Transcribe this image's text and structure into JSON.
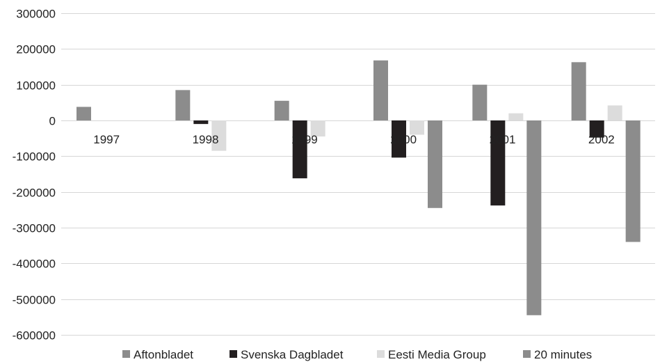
{
  "chart_data": {
    "type": "bar",
    "title": "",
    "xlabel": "",
    "ylabel": "",
    "categories": [
      "1997",
      "1998",
      "1999",
      "2000",
      "2001",
      "2002"
    ],
    "ylim": [
      -600000,
      300000
    ],
    "yticks": [
      300000,
      200000,
      100000,
      0,
      -100000,
      -200000,
      -300000,
      -400000,
      -500000,
      -600000
    ],
    "grid": true,
    "legend_position": "bottom",
    "series": [
      {
        "name": "Aftonbladet",
        "color": "#8c8c8c",
        "values": [
          38000,
          85000,
          55000,
          168000,
          100000,
          163000
        ]
      },
      {
        "name": "Svenska Dagbladet",
        "color": "#231f20",
        "values": [
          0,
          -10000,
          -162000,
          -104000,
          -238000,
          -48000
        ]
      },
      {
        "name": "Eesti Media Group",
        "color": "#dcdcdc",
        "values": [
          0,
          -85000,
          -45000,
          -40000,
          20000,
          42000
        ]
      },
      {
        "name": "20 minutes",
        "color": "#8c8c8c",
        "values": [
          0,
          0,
          0,
          -245000,
          -545000,
          -340000
        ]
      }
    ]
  }
}
